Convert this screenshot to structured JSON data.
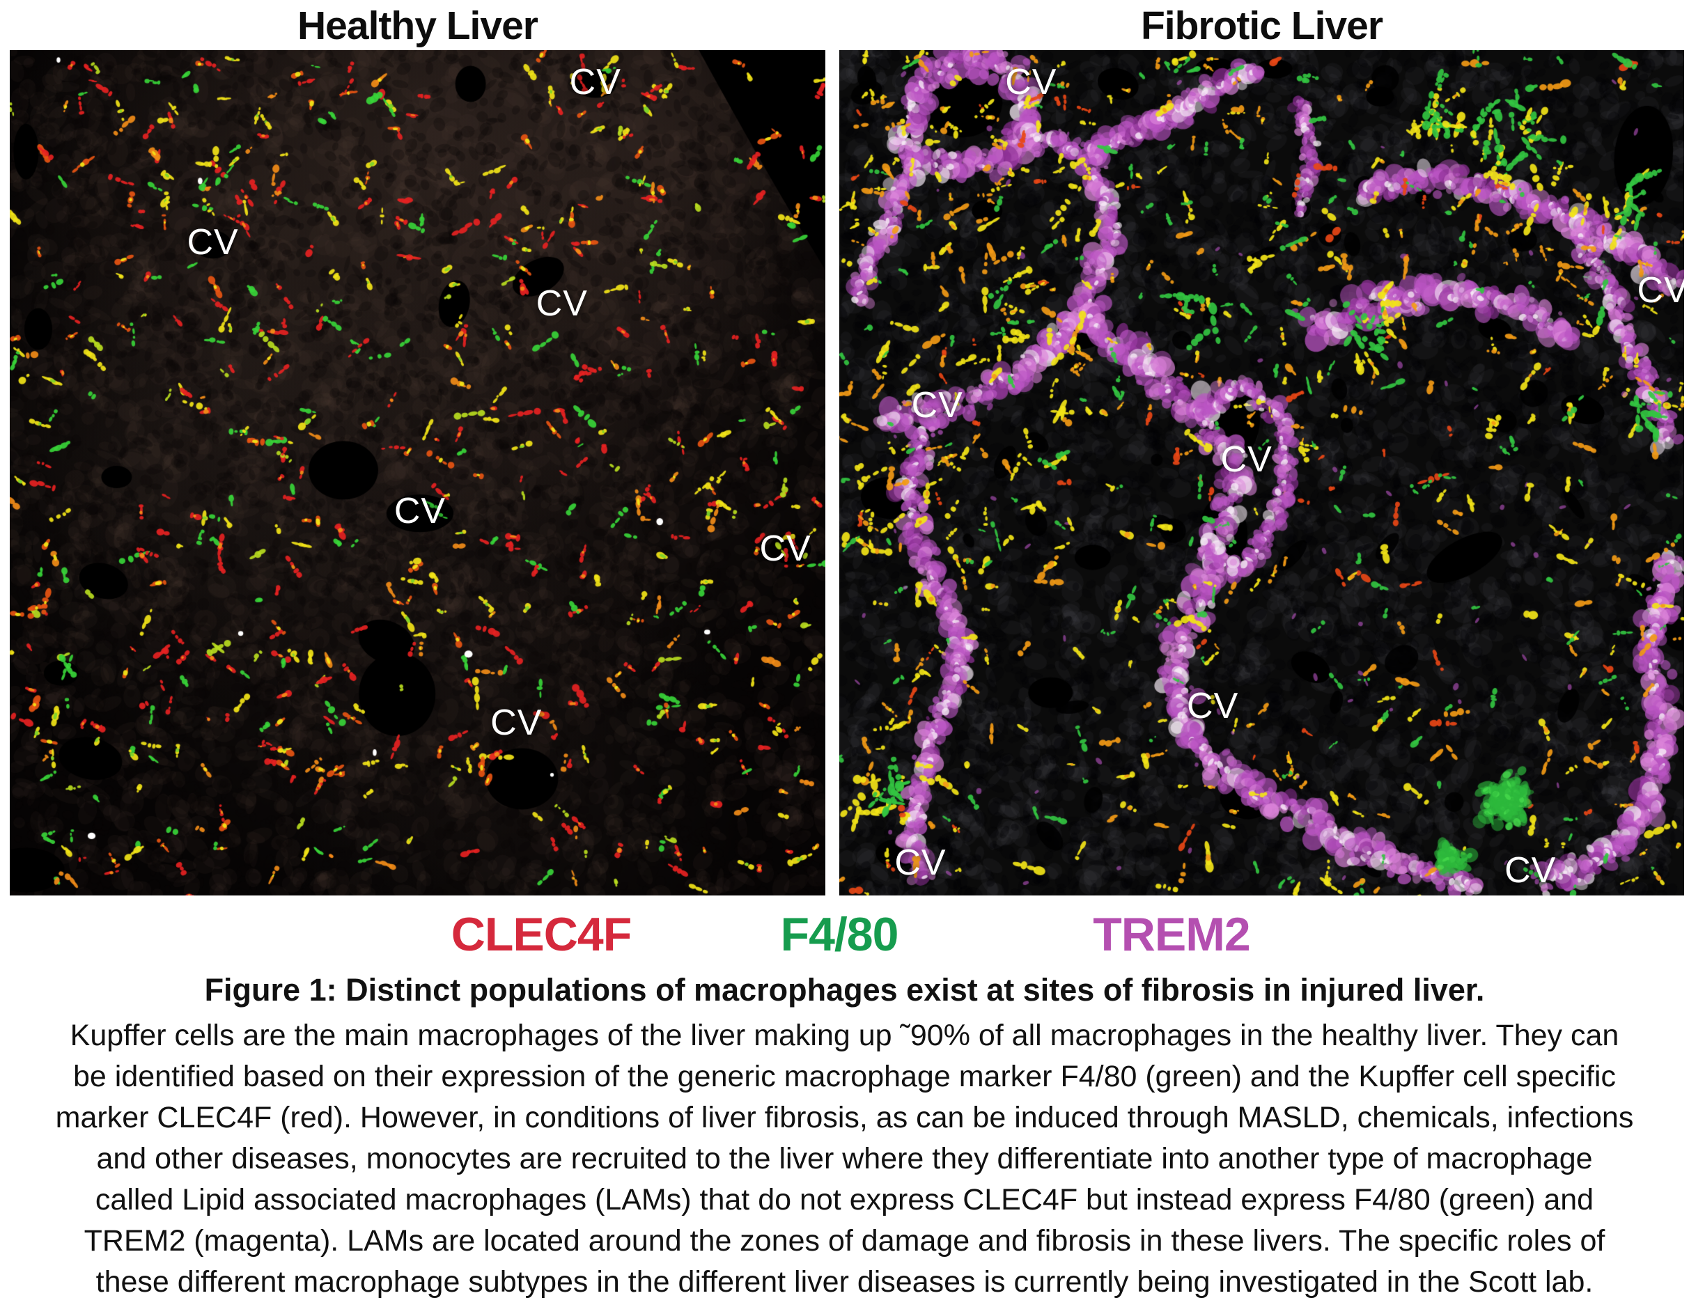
{
  "figure": {
    "panels": [
      {
        "title": "Healthy Liver",
        "cv_label": "CV",
        "cv_positions": [
          [
            0.718,
            0.038
          ],
          [
            0.249,
            0.227
          ],
          [
            0.677,
            0.3
          ],
          [
            0.503,
            0.545
          ],
          [
            0.951,
            0.59
          ],
          [
            0.621,
            0.796
          ]
        ]
      },
      {
        "title": "Fibrotic Liver",
        "cv_label": "CV",
        "cv_positions": [
          [
            0.227,
            0.038
          ],
          [
            0.116,
            0.42
          ],
          [
            0.482,
            0.484
          ],
          [
            0.975,
            0.284
          ],
          [
            0.442,
            0.776
          ],
          [
            0.096,
            0.961
          ],
          [
            0.818,
            0.97
          ]
        ]
      }
    ],
    "legend": [
      {
        "label": "CLEC4F",
        "color": "#d5293c"
      },
      {
        "label": "F4/80",
        "color": "#169c4e"
      },
      {
        "label": "TREM2",
        "color": "#b44fb0"
      }
    ],
    "caption": {
      "title": "Figure 1: Distinct populations of macrophages exist at sites of fibrosis in injured liver.",
      "body_lines": [
        "Kupffer cells are the main macrophages of the liver making up ˜90% of all macrophages in the healthy liver. They can",
        "be identified based on their expression of the generic macrophage marker F4/80 (green) and the Kupffer cell specific",
        "marker CLEC4F (red). However, in conditions of liver fibrosis, as can be induced through MASLD, chemicals, infections",
        "and other diseases, monocytes are recruited to the liver where they differentiate into another type of macrophage",
        "called Lipid associated macrophages (LAMs) that do not express CLEC4F but instead express F4/80 (green) and",
        "TREM2 (magenta). LAMs are located around the zones of damage and fibrosis in these livers. The specific roles of",
        "these different macrophage subtypes in the different liver diseases is currently being investigated in the Scott lab."
      ]
    },
    "microscopy_colors": {
      "healthy": {
        "background": "#060404",
        "tissue": "#4a392f",
        "clec4f_red": "#e62222",
        "orange": "#f28c18",
        "yellow": "#f2e418",
        "f480_green": "#38d438",
        "white_dots": "#ffffff"
      },
      "fibrotic": {
        "background": "#0b0b0b",
        "tissue": "#45454a",
        "trem2_magenta": "#bb55c4",
        "pink": "#dc84da",
        "deep_purple": "#8e2f96",
        "white_core": "#f8ecf7",
        "yellow": "#f2e418",
        "orange": "#f29a16",
        "red": "#e84616",
        "f480_green": "#33c441",
        "green_patch": "#2db83c"
      }
    }
  }
}
